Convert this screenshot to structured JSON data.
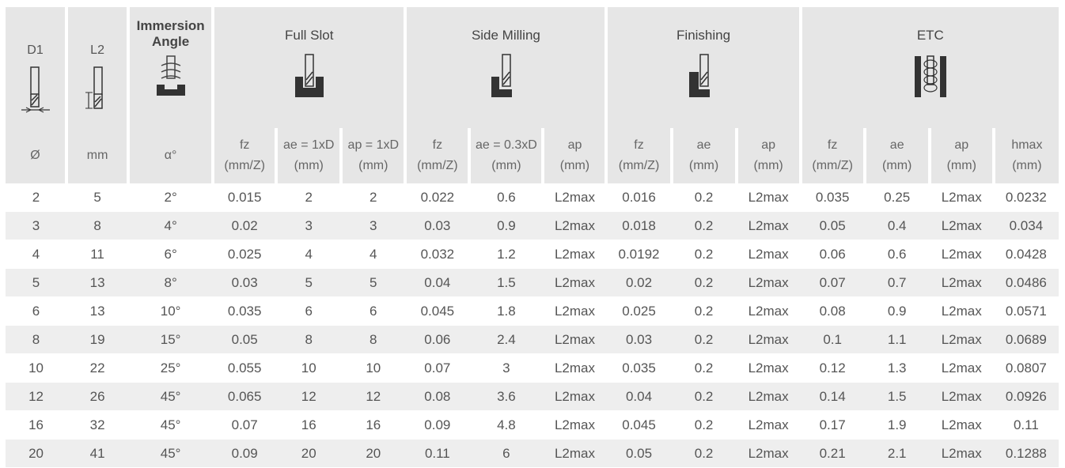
{
  "header": {
    "d1": "D1",
    "l2": "L2",
    "angle_line1": "Immersion",
    "angle_line2": "Angle",
    "groups": [
      "Full Slot",
      "Side Milling",
      "Finishing",
      "ETC"
    ]
  },
  "units": {
    "d1": "Ø",
    "l2": "mm",
    "angle": "α°",
    "cols": [
      [
        "fz",
        "(mm/Z)"
      ],
      [
        "ae = 1xD",
        "(mm)"
      ],
      [
        "ap = 1xD",
        "(mm)"
      ],
      [
        "fz",
        "(mm/Z)"
      ],
      [
        "ae = 0.3xD",
        "(mm)"
      ],
      [
        "ap",
        "(mm)"
      ],
      [
        "fz",
        "(mm/Z)"
      ],
      [
        "ae",
        "(mm)"
      ],
      [
        "ap",
        "(mm)"
      ],
      [
        "fz",
        "(mm/Z)"
      ],
      [
        "ae",
        "(mm)"
      ],
      [
        "ap",
        "(mm)"
      ],
      [
        "hmax",
        "(mm)"
      ]
    ]
  },
  "icons": {
    "d1": "end-mill-diameter-icon",
    "l2": "end-mill-length-icon",
    "angle": "helix-immersion-icon",
    "full_slot": "full-slot-icon",
    "side_milling": "side-milling-icon",
    "finishing": "finishing-icon",
    "etc": "helical-interpolation-icon"
  },
  "rows": [
    [
      "2",
      "5",
      "2°",
      "0.015",
      "2",
      "2",
      "0.022",
      "0.6",
      "L2max",
      "0.016",
      "0.2",
      "L2max",
      "0.035",
      "0.25",
      "L2max",
      "0.0232"
    ],
    [
      "3",
      "8",
      "4°",
      "0.02",
      "3",
      "3",
      "0.03",
      "0.9",
      "L2max",
      "0.018",
      "0.2",
      "L2max",
      "0.05",
      "0.4",
      "L2max",
      "0.034"
    ],
    [
      "4",
      "11",
      "6°",
      "0.025",
      "4",
      "4",
      "0.032",
      "1.2",
      "L2max",
      "0.0192",
      "0.2",
      "L2max",
      "0.06",
      "0.6",
      "L2max",
      "0.0428"
    ],
    [
      "5",
      "13",
      "8°",
      "0.03",
      "5",
      "5",
      "0.04",
      "1.5",
      "L2max",
      "0.02",
      "0.2",
      "L2max",
      "0.07",
      "0.7",
      "L2max",
      "0.0486"
    ],
    [
      "6",
      "13",
      "10°",
      "0.035",
      "6",
      "6",
      "0.045",
      "1.8",
      "L2max",
      "0.025",
      "0.2",
      "L2max",
      "0.08",
      "0.9",
      "L2max",
      "0.0571"
    ],
    [
      "8",
      "19",
      "15°",
      "0.05",
      "8",
      "8",
      "0.06",
      "2.4",
      "L2max",
      "0.03",
      "0.2",
      "L2max",
      "0.1",
      "1.1",
      "L2max",
      "0.0689"
    ],
    [
      "10",
      "22",
      "25°",
      "0.055",
      "10",
      "10",
      "0.07",
      "3",
      "L2max",
      "0.035",
      "0.2",
      "L2max",
      "0.12",
      "1.3",
      "L2max",
      "0.0807"
    ],
    [
      "12",
      "26",
      "45°",
      "0.065",
      "12",
      "12",
      "0.08",
      "3.6",
      "L2max",
      "0.04",
      "0.2",
      "L2max",
      "0.14",
      "1.5",
      "L2max",
      "0.0926"
    ],
    [
      "16",
      "32",
      "45°",
      "0.07",
      "16",
      "16",
      "0.09",
      "4.8",
      "L2max",
      "0.045",
      "0.2",
      "L2max",
      "0.17",
      "1.9",
      "L2max",
      "0.11"
    ],
    [
      "20",
      "41",
      "45°",
      "0.09",
      "20",
      "20",
      "0.11",
      "6",
      "L2max",
      "0.05",
      "0.2",
      "L2max",
      "0.21",
      "2.1",
      "L2max",
      "0.1288"
    ]
  ]
}
